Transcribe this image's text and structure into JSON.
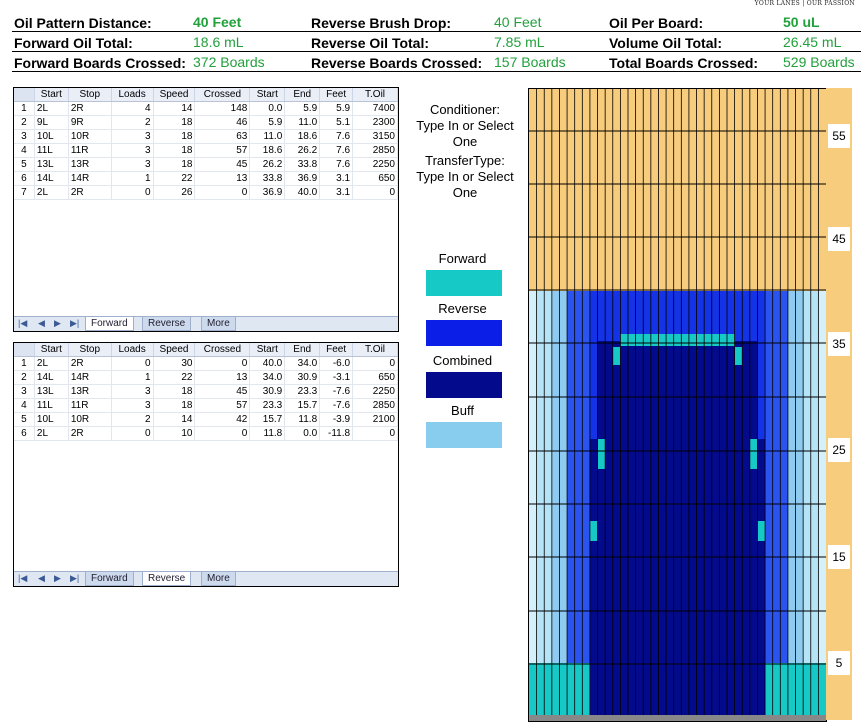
{
  "corner_logo": "YOUR LANES | OUR PASSION",
  "header": [
    {
      "label": "Oil Pattern Distance:",
      "value": "40 Feet",
      "bold": true
    },
    {
      "label": "Reverse Brush Drop:",
      "value": "40 Feet",
      "bold": false
    },
    {
      "label": "Oil Per Board:",
      "value": "50 uL",
      "bold": true
    },
    {
      "label": "Forward Oil Total:",
      "value": "18.6 mL",
      "bold": false
    },
    {
      "label": "Reverse Oil Total:",
      "value": "7.85 mL",
      "bold": false
    },
    {
      "label": "Volume Oil Total:",
      "value": "26.45 mL",
      "bold": false
    },
    {
      "label": "Forward Boards Crossed:",
      "value": "372 Boards",
      "bold": false
    },
    {
      "label": "Reverse Boards Crossed:",
      "value": "157 Boards",
      "bold": false
    },
    {
      "label": "Total Boards Crossed:",
      "value": "529 Boards",
      "bold": false
    }
  ],
  "columns": [
    "Start",
    "Stop",
    "Loads",
    "Speed",
    "Crossed",
    "Start",
    "End",
    "Feet",
    "T.Oil"
  ],
  "forward_rows": [
    [
      "1",
      "2L",
      "2R",
      "4",
      "14",
      "148",
      "0.0",
      "5.9",
      "5.9",
      "7400"
    ],
    [
      "2",
      "9L",
      "9R",
      "2",
      "18",
      "46",
      "5.9",
      "11.0",
      "5.1",
      "2300"
    ],
    [
      "3",
      "10L",
      "10R",
      "3",
      "18",
      "63",
      "11.0",
      "18.6",
      "7.6",
      "3150"
    ],
    [
      "4",
      "11L",
      "11R",
      "3",
      "18",
      "57",
      "18.6",
      "26.2",
      "7.6",
      "2850"
    ],
    [
      "5",
      "13L",
      "13R",
      "3",
      "18",
      "45",
      "26.2",
      "33.8",
      "7.6",
      "2250"
    ],
    [
      "6",
      "14L",
      "14R",
      "1",
      "22",
      "13",
      "33.8",
      "36.9",
      "3.1",
      "650"
    ],
    [
      "7",
      "2L",
      "2R",
      "0",
      "26",
      "0",
      "36.9",
      "40.0",
      "3.1",
      "0"
    ]
  ],
  "reverse_rows": [
    [
      "1",
      "2L",
      "2R",
      "0",
      "30",
      "0",
      "40.0",
      "34.0",
      "-6.0",
      "0"
    ],
    [
      "2",
      "14L",
      "14R",
      "1",
      "22",
      "13",
      "34.0",
      "30.9",
      "-3.1",
      "650"
    ],
    [
      "3",
      "13L",
      "13R",
      "3",
      "18",
      "45",
      "30.9",
      "23.3",
      "-7.6",
      "2250"
    ],
    [
      "4",
      "11L",
      "11R",
      "3",
      "18",
      "57",
      "23.3",
      "15.7",
      "-7.6",
      "2850"
    ],
    [
      "5",
      "10L",
      "10R",
      "2",
      "14",
      "42",
      "15.7",
      "11.8",
      "-3.9",
      "2100"
    ],
    [
      "6",
      "2L",
      "2R",
      "0",
      "10",
      "0",
      "11.8",
      "0.0",
      "-11.8",
      "0"
    ]
  ],
  "tabs": [
    "Forward",
    "Reverse",
    "More"
  ],
  "conditioner": "Conditioner:\nType In or Select\nOne",
  "transfer": "TransferType:\nType In or Select\nOne",
  "legend": [
    {
      "label": "Forward",
      "color": "#17c9c6"
    },
    {
      "label": "Reverse",
      "color": "#0b1ee8"
    },
    {
      "label": "Combined",
      "color": "#040a8c"
    },
    {
      "label": "Buff",
      "color": "#88cdee"
    }
  ],
  "scale_ticks": [
    "55",
    "45",
    "35",
    "25",
    "15",
    "5"
  ],
  "colors": {
    "dry": "#f7cd7d",
    "accent_green": "#22a03c"
  }
}
